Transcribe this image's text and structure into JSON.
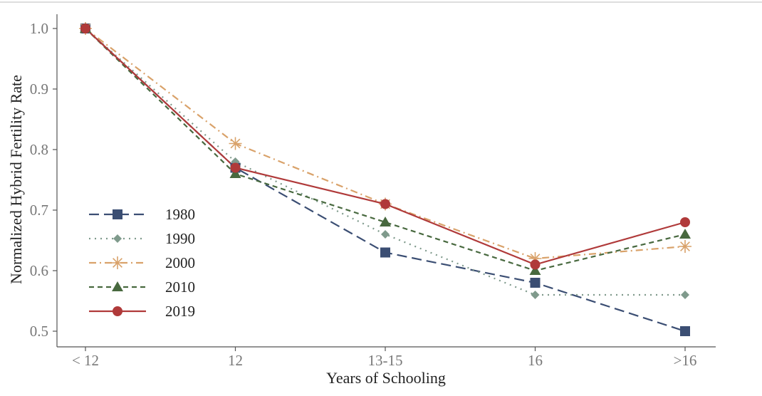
{
  "chart_data": {
    "type": "line",
    "xlabel": "Years of Schooling",
    "ylabel": "Normalized Hybrid Fertility Rate",
    "categories": [
      "< 12",
      "12",
      "13-15",
      "16",
      ">16"
    ],
    "ylim": [
      0.5,
      1.0
    ],
    "yticks": [
      "0.5",
      "0.6",
      "0.7",
      "0.8",
      "0.9",
      "1.0"
    ],
    "legend_position": "bottom-left",
    "series": [
      {
        "name": "1980",
        "values": [
          1.0,
          0.77,
          0.63,
          0.58,
          0.5
        ],
        "color": "#3b4e73",
        "marker": "square",
        "dash": "dashed-long"
      },
      {
        "name": "1990",
        "values": [
          1.0,
          0.78,
          0.66,
          0.56,
          0.56
        ],
        "color": "#7f9a8c",
        "marker": "diamond",
        "dash": "dotted"
      },
      {
        "name": "2000",
        "values": [
          1.0,
          0.81,
          0.71,
          0.62,
          0.64
        ],
        "color": "#d9a26a",
        "marker": "asterisk",
        "dash": "dash-dot"
      },
      {
        "name": "2010",
        "values": [
          1.0,
          0.76,
          0.68,
          0.6,
          0.66
        ],
        "color": "#48693f",
        "marker": "triangle",
        "dash": "dashed"
      },
      {
        "name": "2019",
        "values": [
          1.0,
          0.77,
          0.71,
          0.61,
          0.68
        ],
        "color": "#b03a3a",
        "marker": "circle",
        "dash": "solid"
      }
    ]
  }
}
